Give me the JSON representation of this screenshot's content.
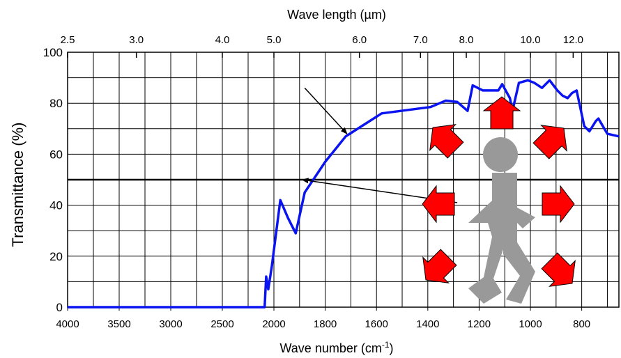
{
  "chart_data": {
    "type": "line",
    "title": "",
    "xlabel": "Wave number (cm",
    "xlabel_superscript": "-1",
    "xlabel_suffix": ")",
    "x2label": "Wave length (µm)",
    "ylabel": "Transmittance (%)",
    "xlim": [
      4000,
      655
    ],
    "ylim": [
      0,
      100
    ],
    "x_ticks": [
      {
        "value": 4000,
        "label": "4000"
      },
      {
        "value": 3500,
        "label": "3500"
      },
      {
        "value": 3000,
        "label": "3000"
      },
      {
        "value": 2500,
        "label": "2500"
      },
      {
        "value": 2000,
        "label": "2000"
      },
      {
        "value": 1800,
        "label": "1800"
      },
      {
        "value": 1600,
        "label": "1600"
      },
      {
        "value": 1400,
        "label": "1400"
      },
      {
        "value": 1200,
        "label": "1200"
      },
      {
        "value": 1000,
        "label": "1000"
      },
      {
        "value": 800,
        "label": "800"
      }
    ],
    "x2_ticks": [
      {
        "value": 2.5,
        "label": "2.5"
      },
      {
        "value": 3.0,
        "label": "3.0"
      },
      {
        "value": 4.0,
        "label": "4.0"
      },
      {
        "value": 5.0,
        "label": "5.0"
      },
      {
        "value": 6.0,
        "label": "6.0"
      },
      {
        "value": 7.0,
        "label": "7.0"
      },
      {
        "value": 8.0,
        "label": "8.0"
      },
      {
        "value": 10.0,
        "label": "10.0"
      },
      {
        "value": 12.0,
        "label": "12.0"
      }
    ],
    "y_ticks": [
      {
        "value": 0,
        "label": "0"
      },
      {
        "value": 20,
        "label": "20"
      },
      {
        "value": 40,
        "label": "40"
      },
      {
        "value": 60,
        "label": "60"
      },
      {
        "value": 80,
        "label": "80"
      },
      {
        "value": 100,
        "label": "100"
      }
    ],
    "grid": true,
    "threshold_y": 50,
    "series": [
      {
        "color": "#0a14f0",
        "x": [
          4000,
          2090,
          2075,
          2055,
          2020,
          1975,
          1945,
          1915,
          1880,
          1800,
          1720,
          1580,
          1390,
          1330,
          1285,
          1245,
          1225,
          1185,
          1125,
          1110,
          1080,
          1070,
          1045,
          1010,
          985,
          955,
          925,
          895,
          875,
          855,
          838,
          820,
          790,
          770,
          745,
          735,
          700,
          655
        ],
        "y": [
          0,
          0,
          12,
          7,
          16,
          42,
          35,
          29,
          45,
          57,
          67,
          76,
          78.5,
          81,
          80.5,
          77,
          87,
          85,
          85,
          87.5,
          82,
          77,
          88,
          89,
          88,
          86,
          89,
          85,
          83,
          82,
          84,
          85,
          71,
          69,
          73,
          74,
          68,
          67
        ]
      }
    ],
    "annotation_arrows": [
      {
        "from": [
          1880,
          86
        ],
        "to": [
          1715,
          68
        ]
      },
      {
        "from": [
          1285,
          41
        ],
        "to": [
          1890,
          50
        ]
      }
    ]
  },
  "illustration": {
    "figure_color": "#999999",
    "arrow_color": "#ff0000",
    "figure_icon": "walking-person-icon",
    "arrow_icon": "radiating-heat-arrow-icon"
  }
}
